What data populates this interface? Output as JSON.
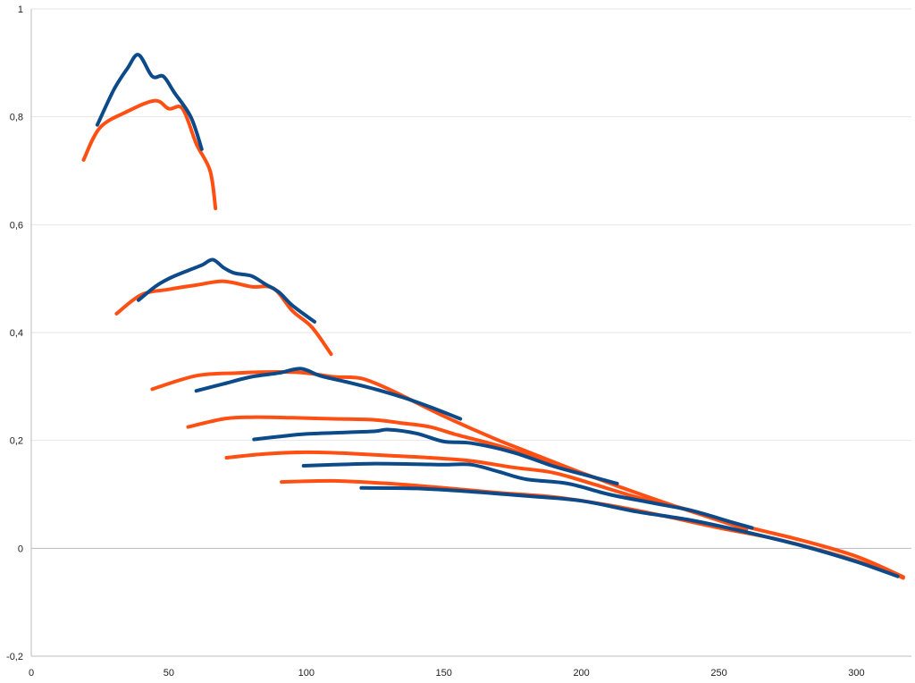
{
  "chart_data": {
    "type": "line",
    "title": "",
    "xlabel": "",
    "ylabel": "",
    "xlim": [
      0,
      320
    ],
    "ylim": [
      -0.2,
      1
    ],
    "x_ticks": [
      "0",
      "50",
      "100",
      "150",
      "200",
      "250",
      "300"
    ],
    "y_ticks": [
      "-0,2",
      "0",
      "0,2",
      "0,4",
      "0,6",
      "0,8",
      "1"
    ],
    "grid": "horizontal",
    "legend": "none",
    "colors": {
      "blue": "#0c4a8a",
      "orange": "#ff4f12"
    },
    "series": [
      {
        "color": "orange",
        "x": [
          19,
          25,
          35,
          45,
          50,
          55,
          60,
          65,
          67
        ],
        "y": [
          0.72,
          0.78,
          0.81,
          0.83,
          0.815,
          0.815,
          0.75,
          0.7,
          0.63
        ]
      },
      {
        "color": "blue",
        "x": [
          24,
          30,
          35,
          39,
          44,
          48,
          52,
          58,
          62
        ],
        "y": [
          0.785,
          0.85,
          0.89,
          0.915,
          0.875,
          0.875,
          0.845,
          0.8,
          0.74
        ]
      },
      {
        "color": "orange",
        "x": [
          31,
          40,
          50,
          60,
          70,
          80,
          88,
          95,
          102,
          109
        ],
        "y": [
          0.435,
          0.47,
          0.48,
          0.488,
          0.495,
          0.485,
          0.482,
          0.44,
          0.41,
          0.36
        ]
      },
      {
        "color": "blue",
        "x": [
          39,
          45,
          50,
          57,
          62,
          66,
          70,
          74,
          80,
          85,
          90,
          95,
          103
        ],
        "y": [
          0.46,
          0.485,
          0.5,
          0.515,
          0.525,
          0.535,
          0.52,
          0.51,
          0.505,
          0.49,
          0.475,
          0.45,
          0.42
        ]
      },
      {
        "color": "orange",
        "x": [
          44,
          60,
          75,
          90,
          100,
          110,
          120,
          130,
          140,
          150,
          160,
          170,
          180,
          190,
          200,
          210
        ],
        "y": [
          0.295,
          0.32,
          0.325,
          0.327,
          0.325,
          0.318,
          0.315,
          0.295,
          0.27,
          0.245,
          0.222,
          0.2,
          0.18,
          0.16,
          0.14,
          0.122
        ]
      },
      {
        "color": "blue",
        "x": [
          60,
          70,
          80,
          90,
          98,
          105,
          115,
          125,
          135,
          145,
          156
        ],
        "y": [
          0.292,
          0.305,
          0.318,
          0.325,
          0.333,
          0.32,
          0.308,
          0.295,
          0.28,
          0.262,
          0.24
        ]
      },
      {
        "color": "orange",
        "x": [
          57,
          70,
          80,
          95,
          110,
          125,
          135,
          145,
          155,
          170,
          185,
          200,
          215,
          230,
          245,
          260
        ],
        "y": [
          0.225,
          0.24,
          0.243,
          0.242,
          0.24,
          0.238,
          0.232,
          0.225,
          0.21,
          0.19,
          0.165,
          0.14,
          0.112,
          0.085,
          0.06,
          0.035
        ]
      },
      {
        "color": "blue",
        "x": [
          81,
          90,
          100,
          115,
          125,
          130,
          140,
          150,
          160,
          175,
          190,
          200,
          213
        ],
        "y": [
          0.202,
          0.207,
          0.212,
          0.215,
          0.217,
          0.22,
          0.213,
          0.198,
          0.195,
          0.178,
          0.152,
          0.138,
          0.12
        ]
      },
      {
        "color": "orange",
        "x": [
          71,
          85,
          100,
          115,
          130,
          145,
          160,
          175,
          190,
          205,
          220,
          240,
          260,
          280,
          300,
          317
        ],
        "y": [
          0.168,
          0.175,
          0.178,
          0.176,
          0.172,
          0.168,
          0.162,
          0.15,
          0.14,
          0.118,
          0.095,
          0.07,
          0.04,
          0.015,
          -0.015,
          -0.053
        ]
      },
      {
        "color": "blue",
        "x": [
          99,
          110,
          125,
          140,
          150,
          160,
          170,
          180,
          195,
          210,
          225,
          240,
          255,
          262
        ],
        "y": [
          0.153,
          0.155,
          0.157,
          0.156,
          0.155,
          0.155,
          0.142,
          0.128,
          0.12,
          0.1,
          0.085,
          0.07,
          0.048,
          0.038
        ]
      },
      {
        "color": "orange",
        "x": [
          91,
          110,
          130,
          150,
          170,
          190,
          210,
          230,
          250,
          270,
          290,
          310,
          317
        ],
        "y": [
          0.123,
          0.125,
          0.12,
          0.112,
          0.103,
          0.095,
          0.08,
          0.06,
          0.038,
          0.018,
          -0.008,
          -0.04,
          -0.055
        ]
      },
      {
        "color": "blue",
        "x": [
          120,
          140,
          160,
          180,
          200,
          220,
          240,
          260,
          280,
          300,
          315
        ],
        "y": [
          0.112,
          0.111,
          0.105,
          0.097,
          0.088,
          0.068,
          0.052,
          0.03,
          0.005,
          -0.025,
          -0.052
        ]
      }
    ]
  }
}
